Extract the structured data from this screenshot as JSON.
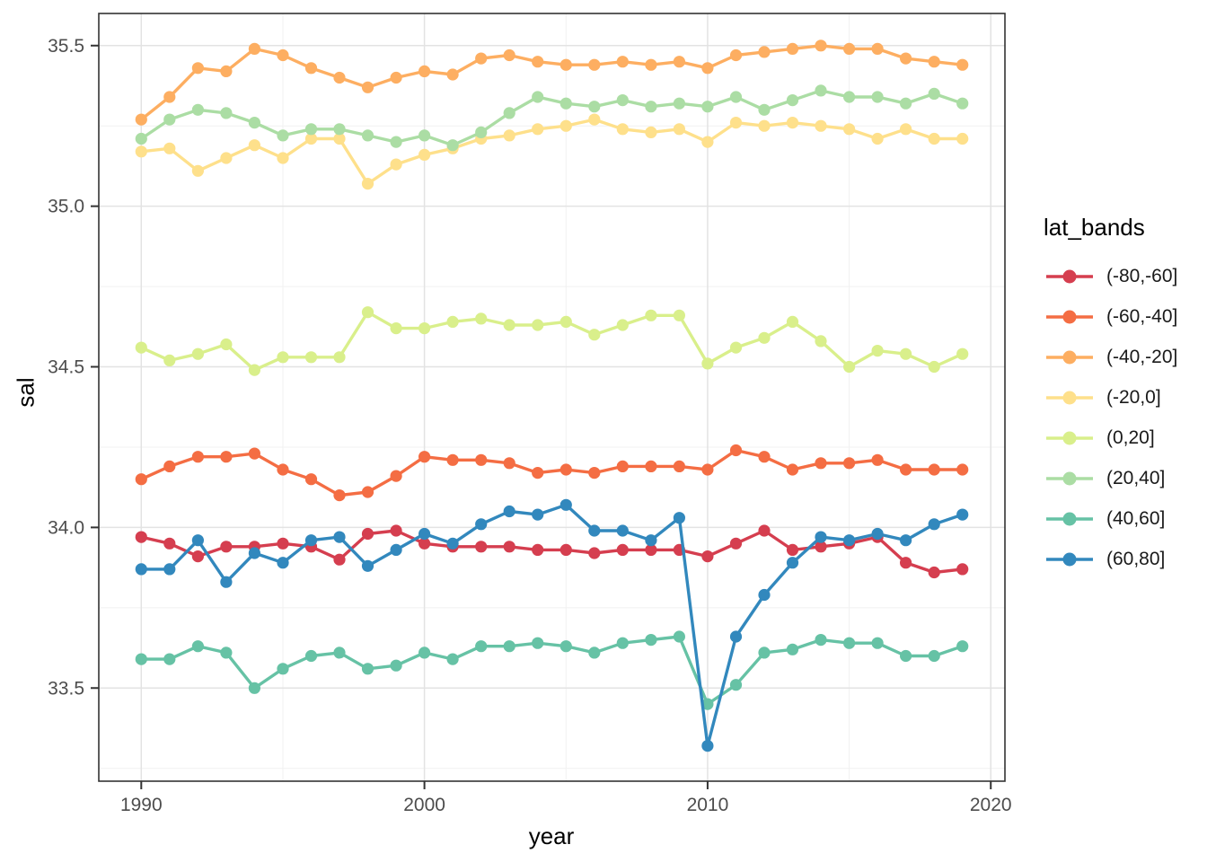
{
  "figure": {
    "y_axis": {
      "title": "sal",
      "tick_labels": [
        "35.5",
        "35.0",
        "34.5",
        "34.0",
        "33.5"
      ],
      "tick_values": [
        35.5,
        35.0,
        34.5,
        34.0,
        33.5
      ],
      "minor_gridlines": [
        35.25,
        34.75,
        34.25,
        33.75,
        33.25
      ]
    },
    "x_axis": {
      "title": "year",
      "tick_labels": [
        "1990",
        "2000",
        "2010",
        "2020"
      ],
      "tick_values": [
        1990,
        2000,
        2010,
        2020
      ],
      "minor_gridlines": [
        1995,
        2005,
        2015
      ]
    },
    "legend_title": "lat_bands"
  },
  "chart_data": {
    "type": "line",
    "title": "",
    "xlabel": "year",
    "ylabel": "sal",
    "legend_title": "lat_bands",
    "legend_position": "right",
    "grid": "on",
    "xlim": [
      1988.5,
      2020.5
    ],
    "ylim": [
      33.21,
      35.6
    ],
    "x": [
      1990,
      1991,
      1992,
      1993,
      1994,
      1995,
      1996,
      1997,
      1998,
      1999,
      2000,
      2001,
      2002,
      2003,
      2004,
      2005,
      2006,
      2007,
      2008,
      2009,
      2010,
      2011,
      2012,
      2013,
      2014,
      2015,
      2016,
      2017,
      2018,
      2019
    ],
    "series": [
      {
        "name": "(-80,-60]",
        "color": "#D53E4F",
        "values": [
          33.97,
          33.95,
          33.91,
          33.94,
          33.94,
          33.95,
          33.94,
          33.9,
          33.98,
          33.99,
          33.95,
          33.94,
          33.94,
          33.94,
          33.93,
          33.93,
          33.92,
          33.93,
          33.93,
          33.93,
          33.91,
          33.95,
          33.99,
          33.93,
          33.94,
          33.95,
          33.97,
          33.89,
          33.86,
          33.87
        ]
      },
      {
        "name": "(-60,-40]",
        "color": "#F46D43",
        "values": [
          34.15,
          34.19,
          34.22,
          34.22,
          34.23,
          34.18,
          34.15,
          34.1,
          34.11,
          34.16,
          34.22,
          34.21,
          34.21,
          34.2,
          34.17,
          34.18,
          34.17,
          34.19,
          34.19,
          34.19,
          34.18,
          34.24,
          34.22,
          34.18,
          34.2,
          34.2,
          34.21,
          34.18,
          34.18,
          34.18
        ]
      },
      {
        "name": "(-40,-20]",
        "color": "#FDAE61",
        "values": [
          35.27,
          35.34,
          35.43,
          35.42,
          35.49,
          35.47,
          35.43,
          35.4,
          35.37,
          35.4,
          35.42,
          35.41,
          35.46,
          35.47,
          35.45,
          35.44,
          35.44,
          35.45,
          35.44,
          35.45,
          35.43,
          35.47,
          35.48,
          35.49,
          35.5,
          35.49,
          35.49,
          35.46,
          35.45,
          35.44
        ]
      },
      {
        "name": "(-20,0]",
        "color": "#FEE08B",
        "values": [
          35.17,
          35.18,
          35.11,
          35.15,
          35.19,
          35.15,
          35.21,
          35.21,
          35.07,
          35.13,
          35.16,
          35.18,
          35.21,
          35.22,
          35.24,
          35.25,
          35.27,
          35.24,
          35.23,
          35.24,
          35.2,
          35.26,
          35.25,
          35.26,
          35.25,
          35.24,
          35.21,
          35.24,
          35.21,
          35.21
        ]
      },
      {
        "name": "(0,20]",
        "color": "#D9EF8B",
        "values": [
          34.56,
          34.52,
          34.54,
          34.57,
          34.49,
          34.53,
          34.53,
          34.53,
          34.67,
          34.62,
          34.62,
          34.64,
          34.65,
          34.63,
          34.63,
          34.64,
          34.6,
          34.63,
          34.66,
          34.66,
          34.51,
          34.56,
          34.59,
          34.64,
          34.58,
          34.5,
          34.55,
          34.54,
          34.5,
          34.54
        ]
      },
      {
        "name": "(20,40]",
        "color": "#ABDDA4",
        "values": [
          35.21,
          35.27,
          35.3,
          35.29,
          35.26,
          35.22,
          35.24,
          35.24,
          35.22,
          35.2,
          35.22,
          35.19,
          35.23,
          35.29,
          35.34,
          35.32,
          35.31,
          35.33,
          35.31,
          35.32,
          35.31,
          35.34,
          35.3,
          35.33,
          35.36,
          35.34,
          35.34,
          35.32,
          35.35,
          35.32
        ]
      },
      {
        "name": "(40,60]",
        "color": "#66C2A5",
        "values": [
          33.59,
          33.59,
          33.63,
          33.61,
          33.5,
          33.56,
          33.6,
          33.61,
          33.56,
          33.57,
          33.61,
          33.59,
          33.63,
          33.63,
          33.64,
          33.63,
          33.61,
          33.64,
          33.65,
          33.66,
          33.45,
          33.51,
          33.61,
          33.62,
          33.65,
          33.64,
          33.64,
          33.6,
          33.6,
          33.63
        ]
      },
      {
        "name": "(60,80]",
        "color": "#3288BD",
        "values": [
          33.87,
          33.87,
          33.96,
          33.83,
          33.92,
          33.89,
          33.96,
          33.97,
          33.88,
          33.93,
          33.98,
          33.95,
          34.01,
          34.05,
          34.04,
          34.07,
          33.99,
          33.99,
          33.96,
          34.03,
          33.32,
          33.66,
          33.79,
          33.89,
          33.97,
          33.96,
          33.98,
          33.96,
          34.01,
          34.04
        ]
      }
    ]
  },
  "style": {
    "panel_border_color": "#333333",
    "major_grid_color": "#e3e3e3",
    "minor_grid_color": "#f1f1f1",
    "tick_color": "#333333",
    "tick_label_color": "#4d4d4d"
  }
}
